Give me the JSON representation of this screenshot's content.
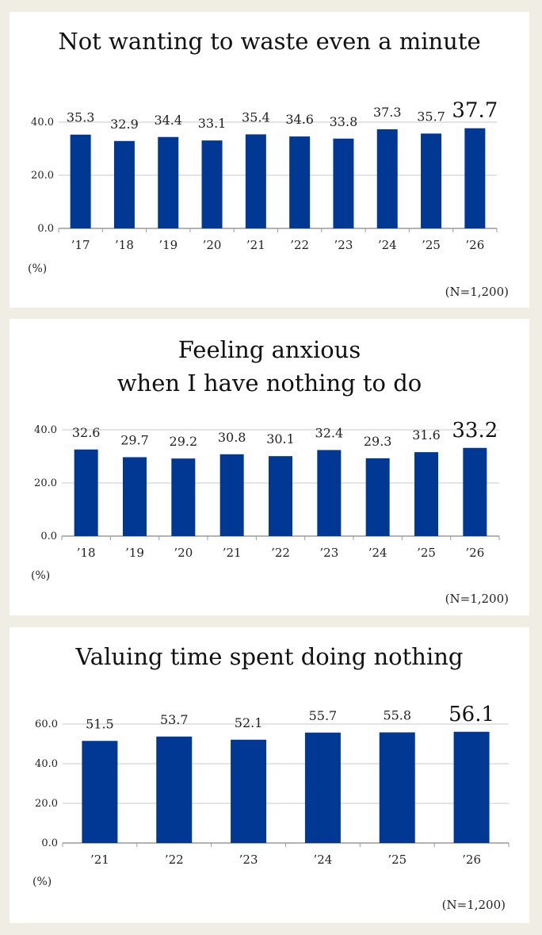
{
  "chart_data": [
    {
      "type": "bar",
      "title": [
        "Not wanting to waste even a minute"
      ],
      "categories": [
        "’17",
        "’18",
        "’19",
        "’20",
        "’21",
        "’22",
        "’23",
        "’24",
        "’25",
        "’26"
      ],
      "values": [
        35.3,
        32.9,
        34.4,
        33.1,
        35.4,
        34.6,
        33.8,
        37.3,
        35.7,
        37.7
      ],
      "yticks": [
        "0.0",
        "20.0",
        "40.0"
      ],
      "ylim": [
        0,
        40
      ],
      "unit": "(%)",
      "note": "(N=1,200)",
      "grid": true,
      "highlight_last": true,
      "bar_color": "#003894"
    },
    {
      "type": "bar",
      "title": [
        "Feeling anxious",
        "when I have nothing to do"
      ],
      "categories": [
        "’18",
        "’19",
        "’20",
        "’21",
        "’22",
        "’23",
        "’24",
        "’25",
        "’26"
      ],
      "values": [
        32.6,
        29.7,
        29.2,
        30.8,
        30.1,
        32.4,
        29.3,
        31.6,
        33.2
      ],
      "yticks": [
        "0.0",
        "20.0",
        "40.0"
      ],
      "ylim": [
        0,
        40
      ],
      "unit": "(%)",
      "note": "(N=1,200)",
      "grid": true,
      "highlight_last": true,
      "bar_color": "#003894"
    },
    {
      "type": "bar",
      "title": [
        "Valuing time spent doing nothing"
      ],
      "categories": [
        "’21",
        "’22",
        "’23",
        "’24",
        "’25",
        "’26"
      ],
      "values": [
        51.5,
        53.7,
        52.1,
        55.7,
        55.8,
        56.1
      ],
      "yticks": [
        "0.0",
        "20.0",
        "40.0",
        "60.0"
      ],
      "ylim": [
        0,
        60
      ],
      "unit": "(%)",
      "note": "(N=1,200)",
      "grid": true,
      "highlight_last": true,
      "bar_color": "#003894"
    }
  ]
}
